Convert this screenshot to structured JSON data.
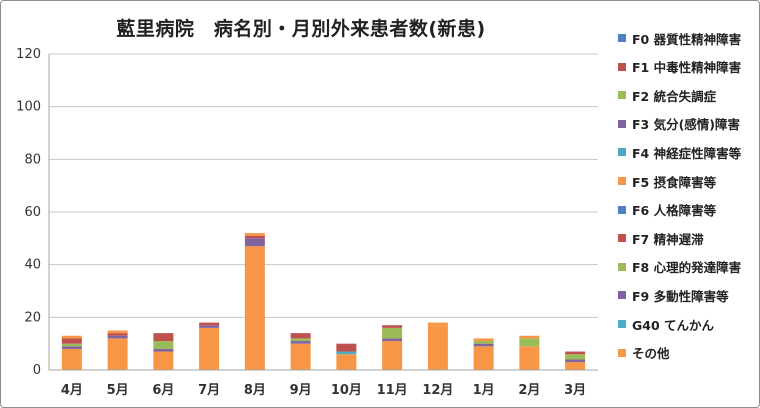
{
  "chart_data": {
    "type": "bar",
    "stacked": true,
    "title": "藍里病院　病名別・月別外来患者数(新患)",
    "xlabel": "",
    "ylabel": "",
    "ylim": [
      0,
      120
    ],
    "yticks": [
      0,
      20,
      40,
      60,
      80,
      100,
      120
    ],
    "grid": true,
    "legend_position": "right",
    "categories": [
      "4月",
      "5月",
      "6月",
      "7月",
      "8月",
      "9月",
      "10月",
      "11月",
      "12月",
      "1月",
      "2月",
      "3月"
    ],
    "series": [
      {
        "name": "その他",
        "color": "#f79646",
        "values": [
          8,
          12,
          7,
          16,
          47,
          10,
          6,
          11,
          17,
          9,
          9,
          3
        ]
      },
      {
        "name": "G40 てんかん",
        "color": "#4bacc6",
        "values": [
          0,
          0,
          0,
          0,
          0,
          0,
          1,
          0,
          0,
          0,
          0,
          0
        ]
      },
      {
        "name": "F9 多動性障害等",
        "color": "#8064a2",
        "values": [
          1,
          1,
          1,
          1,
          3,
          1,
          0,
          1,
          0,
          1,
          0,
          1
        ]
      },
      {
        "name": "F8 心理的発達障害",
        "color": "#9bbb59",
        "values": [
          1,
          0,
          3,
          0,
          0,
          1,
          0,
          4,
          0,
          1,
          3,
          2
        ]
      },
      {
        "name": "F7 精神遅滞",
        "color": "#c0504d",
        "values": [
          2,
          1,
          3,
          1,
          1,
          2,
          3,
          1,
          0,
          0,
          0,
          1
        ]
      },
      {
        "name": "F6 人格障害等",
        "color": "#4f81bd",
        "values": [
          0,
          0,
          0,
          0,
          0,
          0,
          0,
          0,
          0,
          0,
          0,
          0
        ]
      },
      {
        "name": "F5 摂食障害等",
        "color": "#f79646",
        "values": [
          1,
          1,
          0,
          0,
          1,
          0,
          0,
          0,
          1,
          1,
          1,
          0
        ]
      },
      {
        "name": "F4 神経症性障害等",
        "color": "#4bacc6",
        "values": [
          0,
          0,
          0,
          0,
          0,
          0,
          0,
          0,
          0,
          0,
          0,
          0
        ]
      },
      {
        "name": "F3 気分(感情)障害",
        "color": "#8064a2",
        "values": [
          0,
          0,
          0,
          0,
          0,
          0,
          0,
          0,
          0,
          0,
          0,
          0
        ]
      },
      {
        "name": "F2 統合失調症",
        "color": "#9bbb59",
        "values": [
          0,
          0,
          0,
          0,
          0,
          0,
          0,
          0,
          0,
          0,
          0,
          0
        ]
      },
      {
        "name": "F1 中毒性精神障害",
        "color": "#c0504d",
        "values": [
          0,
          0,
          0,
          0,
          0,
          0,
          0,
          0,
          0,
          0,
          0,
          0
        ]
      },
      {
        "name": "F0 器質性精神障害",
        "color": "#4f81bd",
        "values": [
          0,
          0,
          0,
          0,
          0,
          0,
          0,
          0,
          0,
          0,
          0,
          0
        ]
      }
    ]
  }
}
